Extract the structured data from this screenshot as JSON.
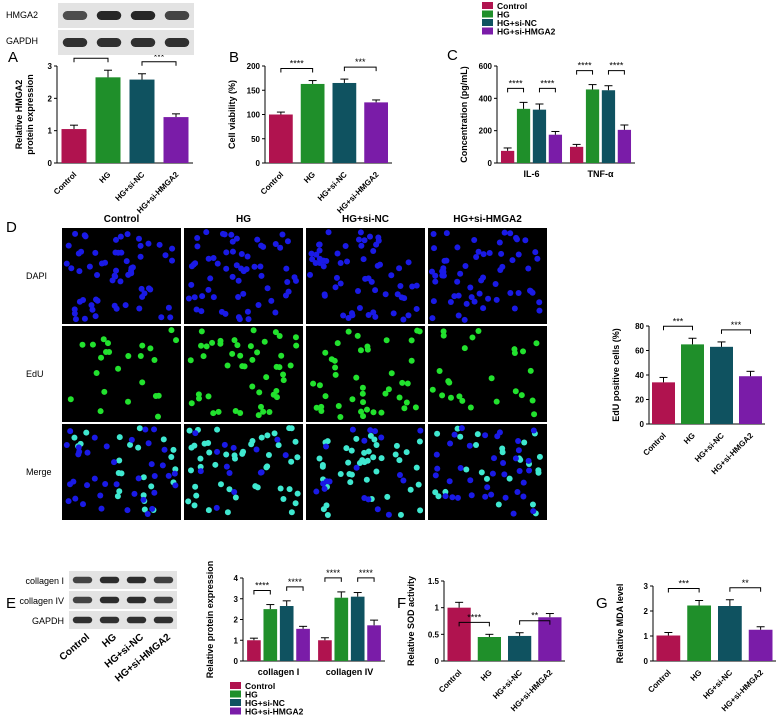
{
  "colors": {
    "control": "#b0134f",
    "hg": "#1f8f2a",
    "hg_si_nc": "#0f5260",
    "hg_si_hmga2": "#7a1ca8"
  },
  "panels": {
    "A": "A",
    "B": "B",
    "C": "C",
    "D": "D",
    "E": "E",
    "F": "F",
    "G": "G"
  },
  "blot_top": {
    "rows": [
      "HMGA2",
      "GAPDH"
    ]
  },
  "blot_e": {
    "rows": [
      "collagen I",
      "collagen IV",
      "GAPDH"
    ],
    "lanes": [
      "Control",
      "HG",
      "HG+si-NC",
      "HG+si-HMGA2"
    ]
  },
  "micro": {
    "cols": [
      "Control",
      "HG",
      "HG+si-NC",
      "HG+si-HMGA2"
    ],
    "rows": [
      "DAPI",
      "EdU",
      "Merge"
    ]
  },
  "chart_data": [
    {
      "id": "A",
      "type": "bar",
      "categories": [
        "Control",
        "HG",
        "HG+si-NC",
        "HG+si-HMGA2"
      ],
      "values": [
        1.05,
        2.65,
        2.58,
        1.42
      ],
      "errors": [
        0.12,
        0.22,
        0.18,
        0.1
      ],
      "ylabel": "Relative HMGA2 protein expression",
      "ylim": [
        0,
        3
      ],
      "yticks": [
        0,
        1,
        2,
        3
      ],
      "sig": [
        "****",
        "***"
      ]
    },
    {
      "id": "B",
      "type": "bar",
      "categories": [
        "Control",
        "HG",
        "HG+si-NC",
        "HG+si-HMGA2"
      ],
      "values": [
        100,
        163,
        165,
        125
      ],
      "errors": [
        5,
        7,
        8,
        5
      ],
      "ylabel": "Cell viability (%)",
      "ylim": [
        0,
        200
      ],
      "yticks": [
        0,
        50,
        100,
        150,
        200
      ],
      "sig": [
        "****",
        "***"
      ]
    },
    {
      "id": "C",
      "type": "bar",
      "groups": [
        "IL-6",
        "TNF-α"
      ],
      "series": [
        {
          "name": "Control",
          "values": [
            75,
            100
          ],
          "errors": [
            18,
            15
          ]
        },
        {
          "name": "HG",
          "values": [
            335,
            455
          ],
          "errors": [
            40,
            30
          ]
        },
        {
          "name": "HG+si-NC",
          "values": [
            330,
            450
          ],
          "errors": [
            35,
            28
          ]
        },
        {
          "name": "HG+si-HMGA2",
          "values": [
            175,
            205
          ],
          "errors": [
            20,
            30
          ]
        }
      ],
      "ylabel": "Concentration (pg/mL)",
      "ylim": [
        0,
        600
      ],
      "yticks": [
        0,
        200,
        400,
        600
      ],
      "sig": [
        "****",
        "****",
        "****",
        "****"
      ]
    },
    {
      "id": "D",
      "type": "bar",
      "categories": [
        "Control",
        "HG",
        "HG+si-NC",
        "HG+si-HMGA2"
      ],
      "values": [
        34,
        65,
        63,
        39
      ],
      "errors": [
        4,
        5,
        4,
        4
      ],
      "ylabel": "EdU positive cells (%)",
      "ylim": [
        0,
        80
      ],
      "yticks": [
        0,
        20,
        40,
        60,
        80
      ],
      "sig": [
        "***",
        "***"
      ]
    },
    {
      "id": "E",
      "type": "bar",
      "groups": [
        "collagen I",
        "collagen IV"
      ],
      "series": [
        {
          "name": "Control",
          "values": [
            1.0,
            1.0
          ],
          "errors": [
            0.1,
            0.12
          ]
        },
        {
          "name": "HG",
          "values": [
            2.5,
            3.05
          ],
          "errors": [
            0.22,
            0.28
          ]
        },
        {
          "name": "HG+si-NC",
          "values": [
            2.65,
            3.1
          ],
          "errors": [
            0.25,
            0.2
          ]
        },
        {
          "name": "HG+si-HMGA2",
          "values": [
            1.55,
            1.72
          ],
          "errors": [
            0.12,
            0.25
          ]
        }
      ],
      "ylabel": "Relative protein expression",
      "ylim": [
        0,
        4
      ],
      "yticks": [
        0,
        1,
        2,
        3,
        4
      ],
      "sig": [
        "****",
        "****",
        "****",
        "****"
      ]
    },
    {
      "id": "F",
      "type": "bar",
      "categories": [
        "Control",
        "HG",
        "HG+si-NC",
        "HG+si-HMGA2"
      ],
      "values": [
        1.0,
        0.45,
        0.47,
        0.82
      ],
      "errors": [
        0.1,
        0.05,
        0.06,
        0.07
      ],
      "ylabel": "Relative SOD activity",
      "ylim": [
        0,
        1.5
      ],
      "yticks": [
        0.0,
        0.5,
        1.0,
        1.5
      ],
      "sig": [
        "****",
        "**"
      ]
    },
    {
      "id": "G",
      "type": "bar",
      "categories": [
        "Control",
        "HG",
        "HG+si-NC",
        "HG+si-HMGA2"
      ],
      "values": [
        1.02,
        2.22,
        2.2,
        1.25
      ],
      "errors": [
        0.12,
        0.2,
        0.25,
        0.12
      ],
      "ylabel": "Relative MDA level",
      "ylim": [
        0,
        3
      ],
      "yticks": [
        0,
        1,
        2,
        3
      ],
      "sig": [
        "***",
        "**"
      ]
    }
  ]
}
